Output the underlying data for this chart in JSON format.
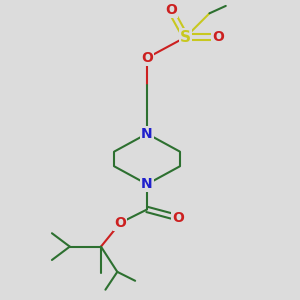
{
  "bg_color": "#dcdcdc",
  "bond_color": "#2d7030",
  "N_color": "#2020cc",
  "O_color": "#cc2020",
  "S_color": "#c8c820",
  "line_width": 1.5,
  "font_size": 10,
  "figsize": [
    3.0,
    3.0
  ],
  "dpi": 100,
  "xlim": [
    0,
    10
  ],
  "ylim": [
    0,
    10
  ]
}
